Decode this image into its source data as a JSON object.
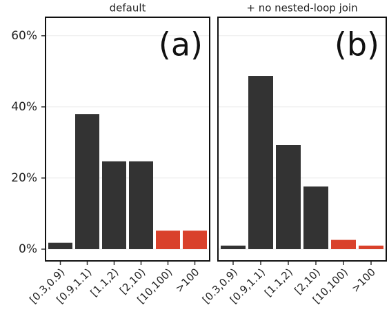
{
  "chart_data": [
    {
      "type": "bar",
      "title": "default",
      "annotation": "(a)",
      "categories": [
        "[0.3,0.9)",
        "[0.9,1.1)",
        "[1.1,2)",
        "[2,10)",
        "[10,100)",
        ">100"
      ],
      "values": [
        1.8,
        38,
        24.7,
        24.7,
        5.2,
        5.2
      ],
      "colors": [
        "#333333",
        "#333333",
        "#333333",
        "#333333",
        "#d9412b",
        "#d9412b"
      ],
      "ylim": [
        -3.3,
        65.2
      ],
      "yticks": [
        {
          "value": 0,
          "label": "0%"
        },
        {
          "value": 20,
          "label": "20%"
        },
        {
          "value": 40,
          "label": "40%"
        },
        {
          "value": 60,
          "label": "60%"
        }
      ],
      "grid": true
    },
    {
      "type": "bar",
      "title": "+ no nested-loop join",
      "annotation": "(b)",
      "categories": [
        "[0.3,0.9)",
        "[0.9,1.1)",
        "[1.1,2)",
        "[2,10)",
        "[10,100)",
        ">100"
      ],
      "values": [
        1,
        48.7,
        29.3,
        17.6,
        2.6,
        1
      ],
      "colors": [
        "#333333",
        "#333333",
        "#333333",
        "#333333",
        "#d9412b",
        "#d9412b"
      ],
      "ylim": [
        -3.3,
        65.2
      ],
      "yticks": [
        {
          "value": 0,
          "label": "0%"
        },
        {
          "value": 20,
          "label": "20%"
        },
        {
          "value": 40,
          "label": "40%"
        },
        {
          "value": 60,
          "label": "60%"
        }
      ],
      "grid": true
    }
  ]
}
